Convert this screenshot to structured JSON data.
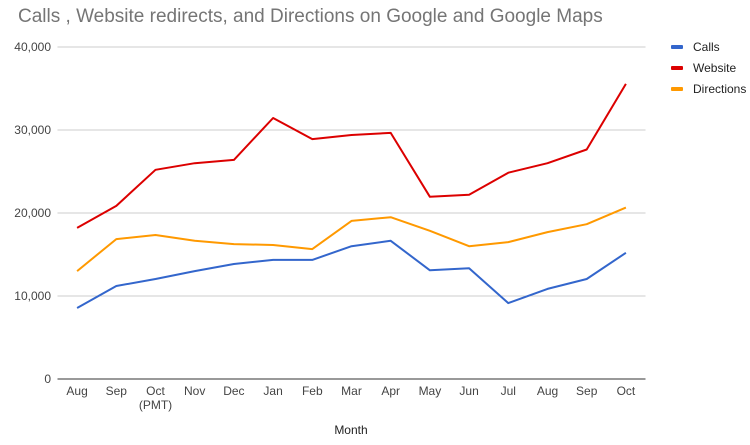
{
  "chart_data": {
    "type": "line",
    "title": "Calls , Website redirects, and Directions on Google and Google Maps",
    "xlabel": "Month",
    "ylabel": "",
    "categories": [
      "Aug",
      "Sep",
      "Oct\n(PMT)",
      "Nov",
      "Dec",
      "Jan",
      "Feb",
      "Mar",
      "Apr",
      "May",
      "Jun",
      "Jul",
      "Aug",
      "Sep",
      "Oct"
    ],
    "ylim": [
      0,
      40000
    ],
    "yticks": [
      "0",
      "10,000",
      "20,000",
      "30,000",
      "40,000"
    ],
    "grid": true,
    "legend_position": "right",
    "series": [
      {
        "name": "Calls",
        "color": "#3366cc",
        "values": [
          8550,
          11200,
          12050,
          13000,
          13850,
          14350,
          14350,
          16000,
          16650,
          13100,
          13350,
          9150,
          10850,
          12050,
          15200
        ]
      },
      {
        "name": "Website",
        "color": "#dc0000",
        "values": [
          18200,
          20850,
          25200,
          26000,
          26400,
          31450,
          28900,
          29400,
          29650,
          21950,
          22200,
          24850,
          26000,
          27650,
          35550
        ]
      },
      {
        "name": "Directions",
        "color": "#ff9900",
        "values": [
          13000,
          16850,
          17350,
          16650,
          16250,
          16150,
          15650,
          19050,
          19500,
          17850,
          16000,
          16500,
          17700,
          18650,
          20650
        ]
      }
    ]
  }
}
